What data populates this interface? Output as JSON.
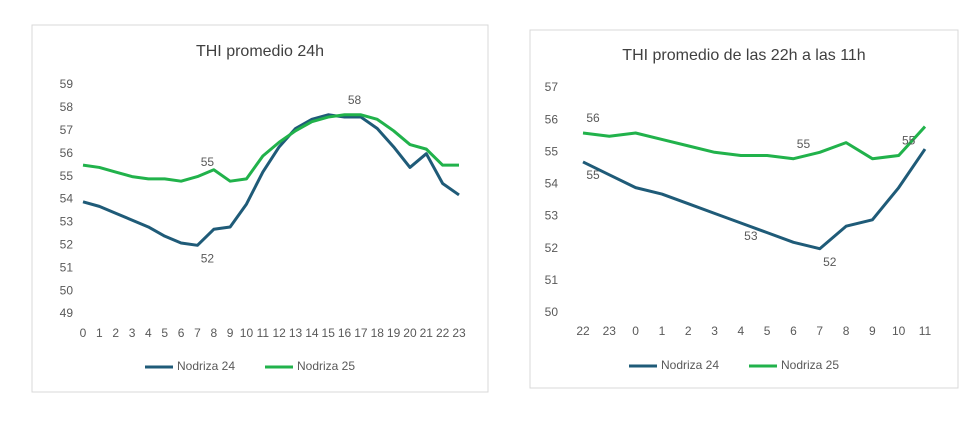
{
  "chart_data": [
    {
      "type": "line",
      "title": "THI promedio 24h",
      "categories": [
        "0",
        "1",
        "2",
        "3",
        "4",
        "5",
        "6",
        "7",
        "8",
        "9",
        "10",
        "11",
        "12",
        "13",
        "14",
        "15",
        "16",
        "17",
        "18",
        "19",
        "20",
        "21",
        "22",
        "23"
      ],
      "ylim": [
        49,
        59
      ],
      "yticks": [
        49,
        50,
        51,
        52,
        53,
        54,
        55,
        56,
        57,
        58,
        59
      ],
      "series": [
        {
          "name": "Nodriza 24",
          "color": "#1f5b78",
          "values": [
            53.9,
            53.7,
            53.4,
            53.1,
            52.8,
            52.4,
            52.1,
            52.0,
            52.7,
            52.8,
            53.8,
            55.2,
            56.3,
            57.1,
            57.5,
            57.7,
            57.6,
            57.6,
            57.1,
            56.3,
            55.4,
            56.0,
            54.7,
            54.2
          ],
          "value_labels": [
            null,
            null,
            null,
            null,
            null,
            null,
            null,
            "52",
            null,
            null,
            null,
            null,
            null,
            null,
            null,
            null,
            null,
            null,
            null,
            null,
            null,
            null,
            null,
            null
          ]
        },
        {
          "name": "Nodriza 25",
          "color": "#21b24b",
          "values": [
            55.5,
            55.4,
            55.2,
            55.0,
            54.9,
            54.9,
            54.8,
            55.0,
            55.3,
            54.8,
            54.9,
            55.9,
            56.5,
            57.0,
            57.4,
            57.6,
            57.7,
            57.7,
            57.5,
            57.0,
            56.4,
            56.2,
            55.5,
            55.5
          ],
          "value_labels": [
            null,
            null,
            null,
            null,
            null,
            null,
            null,
            "55",
            null,
            null,
            null,
            null,
            null,
            null,
            null,
            null,
            "58",
            null,
            null,
            null,
            null,
            null,
            null,
            null
          ]
        }
      ]
    },
    {
      "type": "line",
      "title": "THI promedio de las 22h a las 11h",
      "categories": [
        "22",
        "23",
        "0",
        "1",
        "2",
        "3",
        "4",
        "5",
        "6",
        "7",
        "8",
        "9",
        "10",
        "11"
      ],
      "ylim": [
        50,
        57
      ],
      "yticks": [
        50,
        51,
        52,
        53,
        54,
        55,
        56,
        57
      ],
      "series": [
        {
          "name": "Nodriza 24",
          "color": "#1f5b78",
          "values": [
            54.7,
            54.3,
            53.9,
            53.7,
            53.4,
            53.1,
            52.8,
            52.5,
            52.2,
            52.0,
            52.7,
            52.9,
            53.9,
            55.1
          ],
          "value_labels": [
            "55",
            null,
            null,
            null,
            null,
            null,
            "53",
            null,
            null,
            "52",
            null,
            null,
            null,
            null
          ]
        },
        {
          "name": "Nodriza 25",
          "color": "#21b24b",
          "values": [
            55.6,
            55.5,
            55.6,
            55.4,
            55.2,
            55.0,
            54.9,
            54.9,
            54.8,
            55.0,
            55.3,
            54.8,
            54.9,
            55.8
          ],
          "value_labels": [
            "56",
            null,
            null,
            null,
            null,
            null,
            null,
            null,
            "55",
            null,
            null,
            null,
            "55",
            null
          ]
        }
      ]
    }
  ]
}
